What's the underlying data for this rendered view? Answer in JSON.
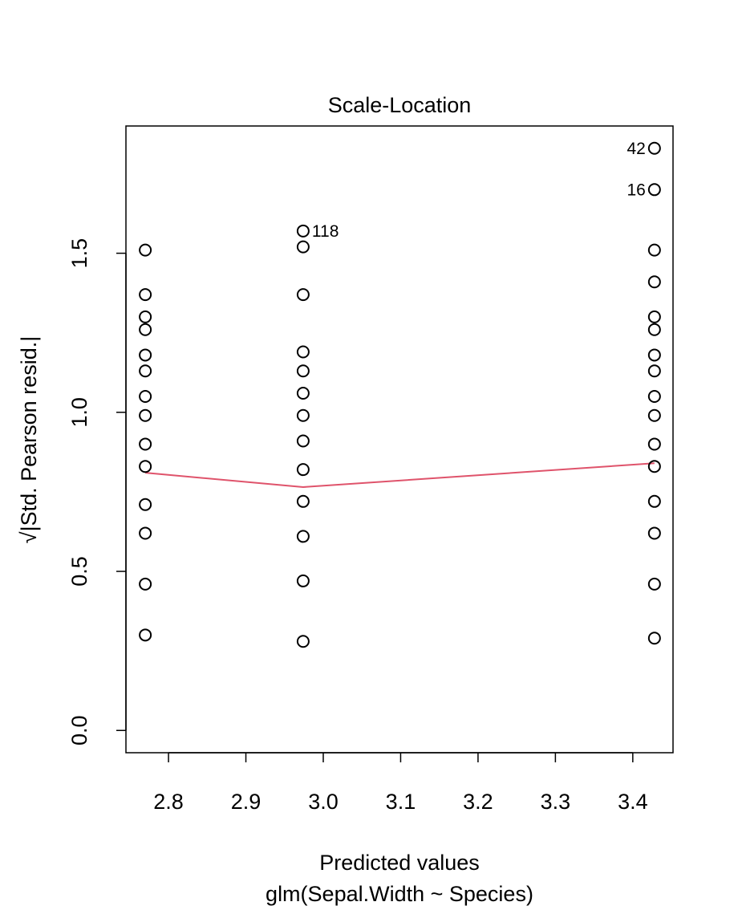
{
  "chart_data": {
    "type": "scatter",
    "title": "Scale-Location",
    "xlabel": "Predicted values",
    "sublabel": "glm(Sepal.Width ~ Species)",
    "ylabel": "√|Std. Pearson resid.|",
    "xlim": [
      2.745,
      3.452
    ],
    "ylim": [
      -0.07,
      1.9
    ],
    "xticks": [
      2.8,
      2.9,
      3.0,
      3.1,
      3.2,
      3.3,
      3.4
    ],
    "xtick_labels": [
      "2.8",
      "2.9",
      "3.0",
      "3.1",
      "3.2",
      "3.3",
      "3.4"
    ],
    "yticks": [
      0.0,
      0.5,
      1.0,
      1.5
    ],
    "ytick_labels": [
      "0.0",
      "0.5",
      "1.0",
      "1.5"
    ],
    "grid": false,
    "series": [
      {
        "points": [
          {
            "x": 2.77,
            "y": 1.51
          },
          {
            "x": 2.77,
            "y": 1.37
          },
          {
            "x": 2.77,
            "y": 1.3
          },
          {
            "x": 2.77,
            "y": 1.26
          },
          {
            "x": 2.77,
            "y": 1.18
          },
          {
            "x": 2.77,
            "y": 1.13
          },
          {
            "x": 2.77,
            "y": 1.05
          },
          {
            "x": 2.77,
            "y": 0.99
          },
          {
            "x": 2.77,
            "y": 0.9
          },
          {
            "x": 2.77,
            "y": 0.83
          },
          {
            "x": 2.77,
            "y": 0.71
          },
          {
            "x": 2.77,
            "y": 0.62
          },
          {
            "x": 2.77,
            "y": 0.46
          },
          {
            "x": 2.77,
            "y": 0.3
          },
          {
            "x": 2.974,
            "y": 1.57
          },
          {
            "x": 2.974,
            "y": 1.52
          },
          {
            "x": 2.974,
            "y": 1.37
          },
          {
            "x": 2.974,
            "y": 1.19
          },
          {
            "x": 2.974,
            "y": 1.13
          },
          {
            "x": 2.974,
            "y": 1.06
          },
          {
            "x": 2.974,
            "y": 0.99
          },
          {
            "x": 2.974,
            "y": 0.91
          },
          {
            "x": 2.974,
            "y": 0.82
          },
          {
            "x": 2.974,
            "y": 0.72
          },
          {
            "x": 2.974,
            "y": 0.61
          },
          {
            "x": 2.974,
            "y": 0.47
          },
          {
            "x": 2.974,
            "y": 0.28
          },
          {
            "x": 3.428,
            "y": 1.83
          },
          {
            "x": 3.428,
            "y": 1.7
          },
          {
            "x": 3.428,
            "y": 1.51
          },
          {
            "x": 3.428,
            "y": 1.41
          },
          {
            "x": 3.428,
            "y": 1.3
          },
          {
            "x": 3.428,
            "y": 1.26
          },
          {
            "x": 3.428,
            "y": 1.18
          },
          {
            "x": 3.428,
            "y": 1.13
          },
          {
            "x": 3.428,
            "y": 1.05
          },
          {
            "x": 3.428,
            "y": 0.99
          },
          {
            "x": 3.428,
            "y": 0.9
          },
          {
            "x": 3.428,
            "y": 0.83
          },
          {
            "x": 3.428,
            "y": 0.72
          },
          {
            "x": 3.428,
            "y": 0.62
          },
          {
            "x": 3.428,
            "y": 0.46
          },
          {
            "x": 3.428,
            "y": 0.29
          }
        ]
      }
    ],
    "smooth_line": {
      "color": "#DF536B",
      "points": [
        {
          "x": 2.77,
          "y": 0.81
        },
        {
          "x": 2.974,
          "y": 0.765
        },
        {
          "x": 3.428,
          "y": 0.84
        }
      ]
    },
    "annotations": [
      {
        "label": "118",
        "x": 2.974,
        "y": 1.57,
        "side": "right"
      },
      {
        "label": "42",
        "x": 3.428,
        "y": 1.83,
        "side": "left"
      },
      {
        "label": "16",
        "x": 3.428,
        "y": 1.7,
        "side": "left"
      }
    ]
  }
}
